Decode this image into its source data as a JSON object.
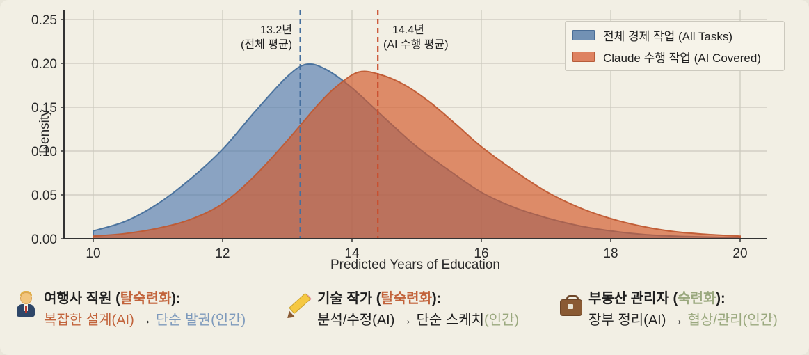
{
  "figure": {
    "background": "#f2efe4",
    "grid_color": "#cbc8bd",
    "spine_color": "#333333",
    "tick_text_color": "#2a2a2a"
  },
  "chart_data": {
    "type": "area",
    "title": "",
    "xlabel": "Predicted Years of Education",
    "ylabel": "Density",
    "xlim": [
      9.55,
      20.42
    ],
    "ylim": [
      0,
      0.26
    ],
    "grid": true,
    "legend_position": "upper-right",
    "x_ticks": [
      "10",
      "12",
      "14",
      "16",
      "18",
      "20"
    ],
    "x_tick_values": [
      10,
      12,
      14,
      16,
      18,
      20
    ],
    "y_ticks": [
      "0.00",
      "0.05",
      "0.10",
      "0.15",
      "0.20",
      "0.25"
    ],
    "y_tick_values": [
      0,
      0.05,
      0.1,
      0.15,
      0.2,
      0.25
    ],
    "series": [
      {
        "name": "전체 경제 작업 (All Tasks)",
        "fill_color": "#4b74ad",
        "fill_opacity": 0.62,
        "line_color": "#466f9b",
        "mean": 13.2,
        "points": [
          [
            10,
            0.009
          ],
          [
            10.5,
            0.02
          ],
          [
            11,
            0.04
          ],
          [
            11.5,
            0.068
          ],
          [
            12,
            0.102
          ],
          [
            12.5,
            0.145
          ],
          [
            13,
            0.185
          ],
          [
            13.3,
            0.199
          ],
          [
            13.6,
            0.193
          ],
          [
            14,
            0.172
          ],
          [
            14.5,
            0.138
          ],
          [
            15,
            0.105
          ],
          [
            15.5,
            0.078
          ],
          [
            16,
            0.053
          ],
          [
            16.5,
            0.036
          ],
          [
            17,
            0.024
          ],
          [
            17.5,
            0.015
          ],
          [
            18,
            0.009
          ],
          [
            18.5,
            0.005
          ],
          [
            19,
            0.003
          ],
          [
            19.5,
            0.002
          ],
          [
            20,
            0.001
          ]
        ]
      },
      {
        "name": "Claude 수행 작업 (AI Covered)",
        "fill_color": "#d35b2e",
        "fill_opacity": 0.68,
        "line_color": "#bf5a33",
        "mean": 14.4,
        "points": [
          [
            10,
            0.003
          ],
          [
            10.5,
            0.006
          ],
          [
            11,
            0.012
          ],
          [
            11.5,
            0.022
          ],
          [
            12,
            0.04
          ],
          [
            12.5,
            0.072
          ],
          [
            13,
            0.112
          ],
          [
            13.5,
            0.155
          ],
          [
            13.8,
            0.176
          ],
          [
            14.1,
            0.19
          ],
          [
            14.4,
            0.188
          ],
          [
            14.8,
            0.176
          ],
          [
            15.2,
            0.156
          ],
          [
            15.6,
            0.131
          ],
          [
            16,
            0.105
          ],
          [
            16.5,
            0.078
          ],
          [
            17,
            0.054
          ],
          [
            17.5,
            0.036
          ],
          [
            18,
            0.023
          ],
          [
            18.5,
            0.014
          ],
          [
            19,
            0.008
          ],
          [
            19.5,
            0.005
          ],
          [
            20,
            0.003
          ]
        ]
      }
    ],
    "mean_lines": [
      {
        "x": 13.2,
        "color": "#456f9e",
        "label_line1": "13.2년",
        "label_line2": "(전체 평균)",
        "label_side": "left"
      },
      {
        "x": 14.4,
        "color": "#c94d2c",
        "label_line1": "14.4년",
        "label_line2": "(AI 수행 평균)",
        "label_side": "right"
      }
    ]
  },
  "legend": {
    "items": [
      {
        "label": "전체 경제 작업 (All Tasks)",
        "swatch_color": "#7291b4"
      },
      {
        "label": "Claude 수행 작업 (AI Covered)",
        "swatch_color": "#de8261"
      }
    ]
  },
  "palette": {
    "orange_text": "#c2633b",
    "blue_text": "#7e9abc",
    "sage_text": "#9aa87e",
    "dark_text": "#1f1f1f"
  },
  "footnotes": [
    {
      "icon": "office-worker-icon",
      "glyph": "👨‍💼",
      "title_parts": [
        {
          "text": "여행사 직원 (",
          "style": "dark"
        },
        {
          "text": "탈숙련화",
          "style": "orange"
        },
        {
          "text": "):",
          "style": "dark"
        }
      ],
      "detail_parts": [
        {
          "text": "복잡한 설계(AI)",
          "style": "orange"
        },
        {
          "text": " → ",
          "style": "dark"
        },
        {
          "text": "단순 발권(인간)",
          "style": "blue"
        }
      ]
    },
    {
      "icon": "pencil-icon",
      "glyph": "✏️",
      "title_parts": [
        {
          "text": "기술 작가 (",
          "style": "dark"
        },
        {
          "text": "탈숙련화",
          "style": "orange"
        },
        {
          "text": "):",
          "style": "dark"
        }
      ],
      "detail_parts": [
        {
          "text": "분석/수정(AI) → 단순 스케치",
          "style": "dark"
        },
        {
          "text": "(인간)",
          "style": "sage"
        }
      ]
    },
    {
      "icon": "briefcase-icon",
      "glyph": "💼",
      "title_parts": [
        {
          "text": "부동산 관리자 (",
          "style": "dark"
        },
        {
          "text": "숙련화",
          "style": "sage"
        },
        {
          "text": "):",
          "style": "dark"
        }
      ],
      "detail_parts": [
        {
          "text": "장부 정리(AI)",
          "style": "dark"
        },
        {
          "text": " → ",
          "style": "dark"
        },
        {
          "text": "협상/관리(인간)",
          "style": "sage"
        }
      ]
    }
  ]
}
